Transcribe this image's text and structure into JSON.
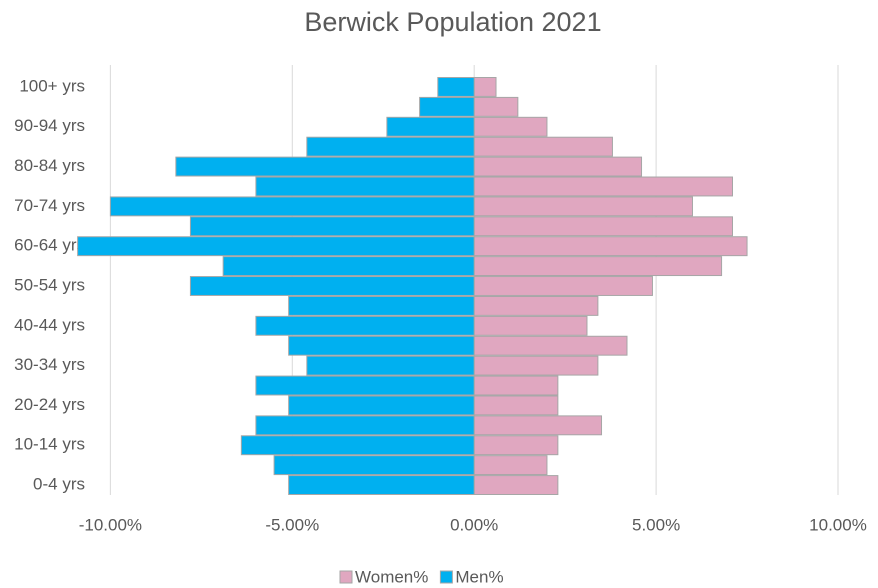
{
  "chart_data": {
    "type": "pyramid",
    "title": "Berwick Population 2021",
    "categories": [
      "0-4 yrs",
      null,
      "10-14 yrs",
      null,
      "20-24 yrs",
      null,
      "30-34 yrs",
      null,
      "40-44 yrs",
      null,
      "50-54 yrs",
      null,
      "60-64 yrs",
      null,
      "70-74 yrs",
      null,
      "80-84 yrs",
      null,
      "90-94 yrs",
      null,
      "100+ yrs"
    ],
    "series": [
      {
        "name": "Women%",
        "color": "#e0a7c0",
        "values": [
          2.3,
          2.0,
          2.3,
          3.5,
          2.3,
          2.3,
          3.4,
          4.2,
          3.1,
          3.4,
          4.9,
          6.8,
          7.5,
          7.1,
          6.0,
          7.1,
          4.6,
          3.8,
          2.0,
          1.2,
          0.6
        ]
      },
      {
        "name": "Men%",
        "color": "#00b0f0",
        "values": [
          -5.1,
          -5.5,
          -6.4,
          -6.0,
          -5.1,
          -6.0,
          -4.6,
          -5.1,
          -6.0,
          -5.1,
          -7.8,
          -6.9,
          -10.9,
          -7.8,
          -10.0,
          -6.0,
          -8.2,
          -4.6,
          -2.4,
          -1.5,
          -1.0
        ]
      }
    ],
    "xlim": [
      -11,
      10
    ],
    "xticks": [
      {
        "value": -10,
        "label": "-10.00%"
      },
      {
        "value": -5,
        "label": "-5.00%"
      },
      {
        "value": 0,
        "label": "0.00%"
      },
      {
        "value": 5,
        "label": "5.00%"
      },
      {
        "value": 10,
        "label": "10.00%"
      }
    ],
    "grid": true,
    "legend": "bottom"
  }
}
